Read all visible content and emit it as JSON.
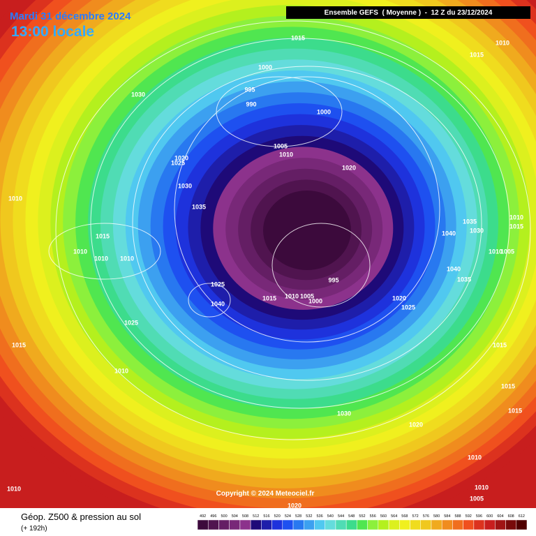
{
  "header": {
    "date": "Mardi 31 décembre 2024",
    "time": "13:00 locale",
    "model": "Ensemble GEFS  ( Moyenne )  -  12 Z du 23/12/2024"
  },
  "footer": {
    "field": "Géop. Z500 & pression au sol",
    "lead": "(+ 192h)",
    "copyright": "Copyright © 2024 Meteociel.fr"
  },
  "isobars": [
    1015,
    1015,
    1010,
    1000,
    995,
    990,
    1000,
    1030,
    1005,
    1010,
    1020,
    1025,
    1020,
    1030,
    1035,
    1010,
    1035,
    1030,
    1010,
    1015,
    1040,
    1015,
    1010,
    1010,
    1010,
    1010,
    1005,
    1040,
    1035,
    995,
    1025,
    1040,
    1015,
    1010,
    1005,
    1000,
    1020,
    1025,
    1025,
    1015,
    1015,
    1010,
    1015,
    1015,
    1030,
    1020,
    1010,
    1010,
    1010,
    1005,
    1020
  ],
  "scale": [
    {
      "value": 492,
      "color": "#3c0a3c"
    },
    {
      "value": 496,
      "color": "#50144f"
    },
    {
      "value": 500,
      "color": "#641e64"
    },
    {
      "value": 504,
      "color": "#782878"
    },
    {
      "value": 508,
      "color": "#8c328c"
    },
    {
      "value": 512,
      "color": "#1e0a78"
    },
    {
      "value": 516,
      "color": "#1e1eaa"
    },
    {
      "value": 520,
      "color": "#1e32dc"
    },
    {
      "value": 524,
      "color": "#1e50f0"
    },
    {
      "value": 528,
      "color": "#2878f0"
    },
    {
      "value": 532,
      "color": "#3ca0f0"
    },
    {
      "value": 536,
      "color": "#50c8f0"
    },
    {
      "value": 540,
      "color": "#64dcdc"
    },
    {
      "value": 544,
      "color": "#50dcb4"
    },
    {
      "value": 548,
      "color": "#3cdc8c"
    },
    {
      "value": 552,
      "color": "#50e650"
    },
    {
      "value": 556,
      "color": "#8cf03c"
    },
    {
      "value": 560,
      "color": "#b4f01e"
    },
    {
      "value": 564,
      "color": "#dcf01e"
    },
    {
      "value": 568,
      "color": "#f0f01e"
    },
    {
      "value": 572,
      "color": "#f0dc1e"
    },
    {
      "value": 576,
      "color": "#f0c81e"
    },
    {
      "value": 580,
      "color": "#f0aa1e"
    },
    {
      "value": 584,
      "color": "#f08c1e"
    },
    {
      "value": 588,
      "color": "#f06e1e"
    },
    {
      "value": 592,
      "color": "#f0501e"
    },
    {
      "value": 596,
      "color": "#dc321e"
    },
    {
      "value": 600,
      "color": "#c81e1e"
    },
    {
      "value": 604,
      "color": "#a01414"
    },
    {
      "value": 608,
      "color": "#780a0a"
    },
    {
      "value": 612,
      "color": "#500000"
    }
  ]
}
